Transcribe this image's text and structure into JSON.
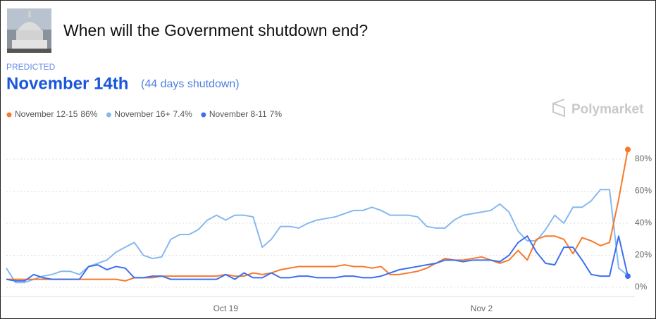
{
  "header": {
    "title": "When will the Government shutdown end?",
    "predicted_label": "PREDICTED",
    "prediction": "November 14th",
    "prediction_note": "(44 days shutdown)",
    "brand": "Polymarket"
  },
  "chart_data": {
    "type": "line",
    "categories": [
      null,
      null,
      null,
      null,
      null,
      null,
      null,
      null,
      null,
      null,
      null,
      null,
      null,
      null,
      null,
      null,
      null,
      null,
      null,
      null,
      null,
      null,
      null,
      null,
      "Oct 19",
      null,
      null,
      null,
      null,
      null,
      null,
      null,
      null,
      null,
      null,
      null,
      null,
      null,
      null,
      null,
      null,
      null,
      null,
      null,
      null,
      null,
      null,
      null,
      null,
      null,
      null,
      null,
      "Nov 2",
      null,
      null,
      null,
      null,
      null,
      null,
      null,
      null,
      null,
      null,
      null,
      null,
      null,
      null,
      null,
      null
    ],
    "series": [
      {
        "name": "November 12-15",
        "color": "#f7792b",
        "current": {
          "value": 86,
          "label": "86%"
        },
        "end_marker": true,
        "values": [
          5,
          5,
          5,
          5,
          5,
          5,
          5,
          5,
          5,
          5,
          5,
          5,
          5,
          4,
          6,
          6,
          6,
          7,
          7,
          7,
          7,
          7,
          7,
          7,
          8,
          7,
          7,
          9,
          8,
          9,
          11,
          12,
          13,
          13,
          13,
          13,
          13,
          14,
          13,
          13,
          12,
          13,
          8,
          8,
          9,
          10,
          12,
          15,
          18,
          17,
          17,
          18,
          19,
          17,
          15,
          17,
          23,
          17,
          30,
          32,
          32,
          30,
          21,
          31,
          29,
          26,
          28,
          55,
          86
        ]
      },
      {
        "name": "November 16+",
        "color": "#86b8f0",
        "current": {
          "value": 7.4,
          "label": "7.4%"
        },
        "end_marker": false,
        "values": [
          12,
          3,
          3,
          5,
          7,
          8,
          10,
          10,
          8,
          13,
          15,
          17,
          22,
          25,
          28,
          20,
          18,
          19,
          30,
          33,
          33,
          36,
          42,
          45,
          42,
          45,
          45,
          44,
          25,
          30,
          38,
          38,
          37,
          40,
          42,
          43,
          44,
          46,
          48,
          48,
          50,
          48,
          45,
          45,
          45,
          44,
          38,
          37,
          37,
          42,
          45,
          46,
          47,
          48,
          52,
          47,
          35,
          29,
          29,
          36,
          45,
          40,
          50,
          50,
          54,
          61,
          61,
          12,
          7.4
        ]
      },
      {
        "name": "November 8-11",
        "color": "#3d6ff0",
        "current": {
          "value": 7,
          "label": "7%"
        },
        "end_marker": true,
        "values": [
          5,
          4,
          4,
          8,
          6,
          5,
          5,
          5,
          5,
          13,
          14,
          11,
          13,
          12,
          6,
          6,
          7,
          7,
          5,
          5,
          5,
          5,
          5,
          5,
          8,
          5,
          9,
          6,
          6,
          9,
          6,
          6,
          7,
          7,
          6,
          6,
          6,
          7,
          7,
          6,
          6,
          7,
          9,
          11,
          12,
          13,
          14,
          15,
          17,
          17,
          16,
          17,
          17,
          17,
          16,
          20,
          28,
          32,
          22,
          15,
          14,
          25,
          25,
          17,
          8,
          7,
          7,
          32,
          7
        ]
      }
    ],
    "ylim": [
      -5,
      95
    ],
    "yticks": [
      {
        "value": 0,
        "label": "0%"
      },
      {
        "value": 20,
        "label": "20%"
      },
      {
        "value": 40,
        "label": "40%"
      },
      {
        "value": 60,
        "label": "60%"
      },
      {
        "value": 80,
        "label": "80%"
      }
    ],
    "grid": true
  }
}
